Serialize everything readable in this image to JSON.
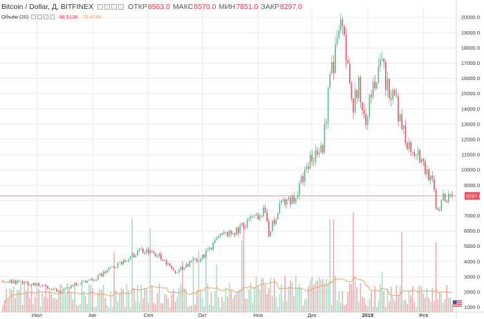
{
  "header": {
    "symbol": "Bitcoin / Dollar, Д, BITFINEX",
    "open_label": "ОТКР",
    "open_value": "8563.0",
    "high_label": "МАКС",
    "high_value": "8570.0",
    "low_label": "МИН",
    "low_value": "7851.0",
    "close_label": "ЗАКР",
    "close_value": "8297.0"
  },
  "volume_header": {
    "label": "Объём (20)",
    "value1": "48.513K",
    "value2": "70.474K"
  },
  "price_tag": "8297.0",
  "colors": {
    "up": "#53b987",
    "down": "#eb4d5c",
    "vol_up": "#a9dcc3",
    "vol_down": "#f5a6ae",
    "ma": "#f0a060",
    "grid": "#ececec",
    "price_line": "#eb4d5c"
  },
  "chart_data": {
    "type": "candlestick",
    "period": "Д",
    "y_axis_ticks": [
      "1000.0",
      "2000.0",
      "3000.0",
      "4000.0",
      "5000.0",
      "6000.0",
      "7000.0",
      "8000.0",
      "9000.0",
      "10000.0",
      "11000.0",
      "12000.0",
      "13000.0",
      "14000.0",
      "15000.0",
      "16000.0",
      "17000.0",
      "18000.0",
      "19000.0",
      "20000.0"
    ],
    "y_range": [
      800,
      20800
    ],
    "x_axis_labels": [
      {
        "label": "Июл",
        "bold": false,
        "day": 19
      },
      {
        "label": "Авг",
        "bold": false,
        "day": 50
      },
      {
        "label": "Сен",
        "bold": false,
        "day": 81
      },
      {
        "label": "Окт",
        "bold": false,
        "day": 111
      },
      {
        "label": "Ноя",
        "bold": false,
        "day": 142
      },
      {
        "label": "Дек",
        "bold": false,
        "day": 172
      },
      {
        "label": "2018",
        "bold": true,
        "day": 203
      },
      {
        "label": "Фев",
        "bold": false,
        "day": 234
      }
    ],
    "price_keypoints": [
      [
        0,
        2750
      ],
      [
        10,
        2600
      ],
      [
        19,
        2500
      ],
      [
        24,
        2300
      ],
      [
        32,
        2000
      ],
      [
        40,
        2500
      ],
      [
        50,
        2800
      ],
      [
        60,
        3500
      ],
      [
        70,
        4200
      ],
      [
        76,
        4700
      ],
      [
        81,
        4600
      ],
      [
        88,
        4300
      ],
      [
        95,
        3300
      ],
      [
        101,
        3700
      ],
      [
        111,
        4300
      ],
      [
        121,
        5600
      ],
      [
        131,
        6100
      ],
      [
        142,
        7000
      ],
      [
        145,
        7400
      ],
      [
        148,
        5900
      ],
      [
        155,
        7800
      ],
      [
        162,
        8100
      ],
      [
        172,
        10900
      ],
      [
        178,
        11500
      ],
      [
        182,
        16000
      ],
      [
        188,
        19200
      ],
      [
        191,
        17500
      ],
      [
        195,
        14300
      ],
      [
        198,
        15400
      ],
      [
        202,
        13500
      ],
      [
        206,
        15500
      ],
      [
        211,
        17000
      ],
      [
        214,
        15300
      ],
      [
        219,
        14200
      ],
      [
        225,
        11600
      ],
      [
        230,
        11200
      ],
      [
        234,
        10200
      ],
      [
        239,
        9000
      ],
      [
        242,
        7200
      ],
      [
        245,
        8100
      ],
      [
        250,
        8297
      ]
    ],
    "close": 8297.0,
    "volume_ma_period": 20,
    "volume_last": "48.513K",
    "volume_ma_last": "70.474K"
  }
}
